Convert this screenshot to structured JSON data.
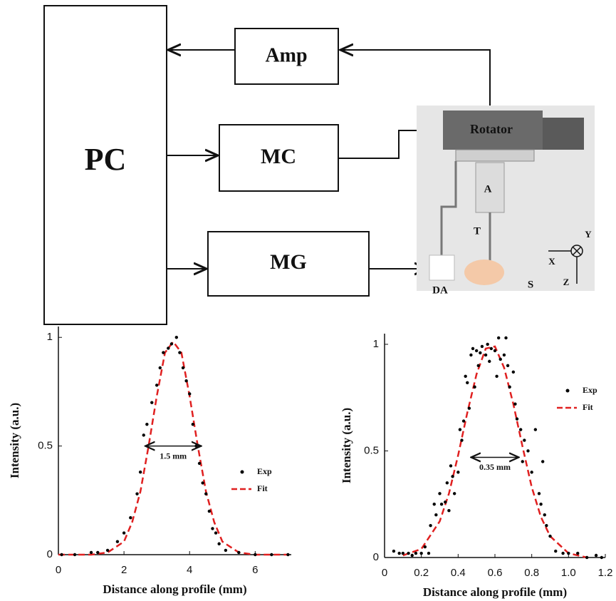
{
  "diagram": {
    "nodes": [
      {
        "label": "PC"
      },
      {
        "label": "Amp"
      },
      {
        "label": "MC"
      },
      {
        "label": "MG"
      },
      {
        "label": "Rotator"
      },
      {
        "label": "A"
      },
      {
        "label": "T"
      },
      {
        "label": "DA"
      },
      {
        "label": "S"
      },
      {
        "label": "X"
      },
      {
        "label": "Y"
      },
      {
        "label": "Z"
      }
    ]
  },
  "chart_data": [
    {
      "type": "scatter",
      "x_label": "Distance along profile (mm)",
      "y_label": "Intensity (a.u.)",
      "annotation": "1.5 mm",
      "xlim": [
        0,
        7.1
      ],
      "ylim": [
        0,
        1.05
      ],
      "xticks": [
        0,
        2,
        4,
        6
      ],
      "yticks": [
        0,
        0.5,
        1
      ],
      "series": [
        {
          "name": "Exp",
          "color": "#000000",
          "mode": "markers",
          "x": [
            0.1,
            0.5,
            1.0,
            1.2,
            1.5,
            1.8,
            2.0,
            2.2,
            2.4,
            2.5,
            2.6,
            2.7,
            2.85,
            3.0,
            3.1,
            3.2,
            3.35,
            3.45,
            3.6,
            3.7,
            3.8,
            3.9,
            4.0,
            4.1,
            4.2,
            4.3,
            4.4,
            4.5,
            4.6,
            4.7,
            4.8,
            4.9,
            5.1,
            5.5,
            6,
            6.5,
            7
          ],
          "values": [
            0,
            0,
            0.01,
            0.01,
            0.02,
            0.06,
            0.1,
            0.17,
            0.28,
            0.38,
            0.55,
            0.6,
            0.7,
            0.78,
            0.86,
            0.93,
            0.95,
            0.97,
            1.0,
            0.93,
            0.86,
            0.8,
            0.74,
            0.6,
            0.5,
            0.42,
            0.33,
            0.28,
            0.2,
            0.12,
            0.1,
            0.05,
            0.02,
            0.01,
            0,
            0,
            0
          ]
        },
        {
          "name": "Fit",
          "color": "#e02020",
          "mode": "dashed",
          "x": [
            0,
            1,
            1.5,
            2,
            2.25,
            2.5,
            2.75,
            3,
            3.25,
            3.5,
            3.75,
            4,
            4.25,
            4.5,
            4.75,
            5,
            5.5,
            6,
            7
          ],
          "values": [
            0,
            0,
            0.01,
            0.06,
            0.15,
            0.29,
            0.5,
            0.73,
            0.93,
            0.98,
            0.93,
            0.73,
            0.5,
            0.29,
            0.15,
            0.06,
            0.01,
            0,
            0
          ]
        }
      ]
    },
    {
      "type": "scatter",
      "x_label": "Distance along profile (mm)",
      "y_label": "Intensity (a.u.)",
      "annotation": "0.35 mm",
      "xlim": [
        0,
        1.2
      ],
      "ylim": [
        0,
        1.05
      ],
      "xticks": [
        0,
        0.2,
        0.4,
        0.6,
        0.8,
        {
          "value": 1,
          "label": "1.0"
        },
        1.2
      ],
      "yticks": [
        0,
        0.5,
        1
      ],
      "series": [
        {
          "name": "Exp",
          "color": "#000000",
          "mode": "markers",
          "x": [
            0.05,
            0.08,
            0.1,
            0.13,
            0.15,
            0.17,
            0.2,
            0.22,
            0.24,
            0.25,
            0.27,
            0.28,
            0.3,
            0.31,
            0.33,
            0.34,
            0.35,
            0.36,
            0.37,
            0.38,
            0.4,
            0.41,
            0.42,
            0.43,
            0.44,
            0.45,
            0.46,
            0.47,
            0.48,
            0.49,
            0.5,
            0.51,
            0.52,
            0.53,
            0.55,
            0.56,
            0.57,
            0.58,
            0.6,
            0.61,
            0.62,
            0.63,
            0.65,
            0.66,
            0.67,
            0.68,
            0.7,
            0.71,
            0.72,
            0.74,
            0.75,
            0.76,
            0.78,
            0.8,
            0.82,
            0.84,
            0.85,
            0.86,
            0.87,
            0.88,
            0.9,
            0.93,
            0.97,
            1.0,
            1.05,
            1.1,
            1.15,
            1.18
          ],
          "values": [
            0.03,
            0.02,
            0.02,
            0.02,
            0.01,
            0.02,
            0.02,
            0.05,
            0.02,
            0.15,
            0.25,
            0.2,
            0.3,
            0.25,
            0.26,
            0.35,
            0.22,
            0.43,
            0.38,
            0.3,
            0.4,
            0.6,
            0.55,
            0.64,
            0.85,
            0.82,
            0.7,
            0.95,
            0.98,
            0.8,
            0.97,
            0.9,
            0.96,
            0.99,
            0.95,
            1.0,
            0.92,
            0.98,
            0.97,
            0.85,
            1.03,
            0.93,
            0.95,
            1.03,
            0.9,
            0.8,
            0.87,
            0.72,
            0.65,
            0.6,
            0.45,
            0.55,
            0.5,
            0.4,
            0.6,
            0.3,
            0.25,
            0.45,
            0.2,
            0.15,
            0.1,
            0.03,
            0.02,
            0.02,
            0.02,
            0,
            0.01,
            0
          ]
        },
        {
          "name": "Fit",
          "color": "#e02020",
          "mode": "dashed",
          "x": [
            0.1,
            0.2,
            0.3,
            0.35,
            0.4,
            0.45,
            0.5,
            0.55,
            0.6,
            0.65,
            0.7,
            0.75,
            0.8,
            0.85,
            0.9,
            1.0,
            1.1
          ],
          "values": [
            0.01,
            0.04,
            0.17,
            0.3,
            0.48,
            0.68,
            0.86,
            0.98,
            0.99,
            0.89,
            0.72,
            0.52,
            0.33,
            0.19,
            0.1,
            0.02,
            0
          ]
        }
      ]
    }
  ]
}
